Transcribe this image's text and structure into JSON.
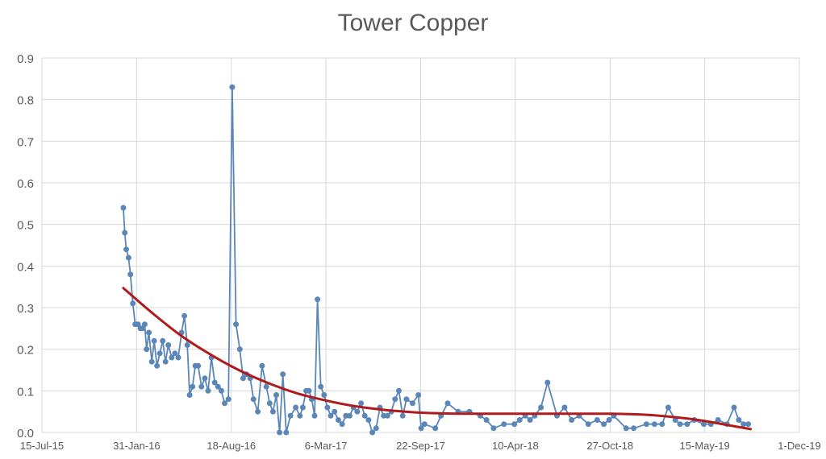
{
  "chart_data": {
    "type": "line",
    "title": "Tower Copper",
    "xlabel": "",
    "ylabel": "",
    "x_axis_type": "date",
    "xlim": [
      "2015-07-15",
      "2019-12-01"
    ],
    "ylim": [
      0,
      0.9
    ],
    "x_ticks": [
      "2015-07-15",
      "2016-01-31",
      "2016-08-18",
      "2017-03-06",
      "2017-09-22",
      "2018-04-10",
      "2018-10-27",
      "2019-05-15",
      "2019-12-01"
    ],
    "x_tick_labels": [
      "15-Jul-15",
      "31-Jan-16",
      "18-Aug-16",
      "6-Mar-17",
      "22-Sep-17",
      "10-Apr-18",
      "27-Oct-18",
      "15-May-19",
      "1-Dec-19"
    ],
    "y_ticks": [
      0,
      0.1,
      0.2,
      0.3,
      0.4,
      0.5,
      0.6,
      0.7,
      0.8,
      0.9
    ],
    "y_tick_labels": [
      "0.0",
      "0.1",
      "0.2",
      "0.3",
      "0.4",
      "0.5",
      "0.6",
      "0.7",
      "0.8",
      "0.9"
    ],
    "grid": true,
    "legend": "none",
    "colors": {
      "series": "#5B86B8",
      "trend": "#B01A1A",
      "grid": "#D9D9D9",
      "axis_text": "#595959"
    },
    "series": [
      {
        "type": "line-markers",
        "x": [
          "2016-01-03",
          "2016-01-06",
          "2016-01-09",
          "2016-01-14",
          "2016-01-18",
          "2016-01-23",
          "2016-01-28",
          "2016-02-03",
          "2016-02-08",
          "2016-02-13",
          "2016-02-17",
          "2016-02-21",
          "2016-02-26",
          "2016-03-03",
          "2016-03-08",
          "2016-03-14",
          "2016-03-20",
          "2016-03-26",
          "2016-04-01",
          "2016-04-07",
          "2016-04-14",
          "2016-04-21",
          "2016-04-28",
          "2016-05-05",
          "2016-05-11",
          "2016-05-17",
          "2016-05-22",
          "2016-05-28",
          "2016-06-03",
          "2016-06-09",
          "2016-06-16",
          "2016-06-23",
          "2016-06-30",
          "2016-07-07",
          "2016-07-14",
          "2016-07-21",
          "2016-07-28",
          "2016-08-04",
          "2016-08-12",
          "2016-08-20",
          "2016-08-28",
          "2016-09-05",
          "2016-09-12",
          "2016-09-19",
          "2016-09-27",
          "2016-10-04",
          "2016-10-13",
          "2016-10-22",
          "2016-10-31",
          "2016-11-07",
          "2016-11-14",
          "2016-11-21",
          "2016-11-28",
          "2016-12-05",
          "2016-12-12",
          "2016-12-21",
          "2017-01-01",
          "2017-01-10",
          "2017-01-16",
          "2017-01-23",
          "2017-01-29",
          "2017-02-04",
          "2017-02-10",
          "2017-02-16",
          "2017-02-23",
          "2017-03-02",
          "2017-03-09",
          "2017-03-16",
          "2017-03-24",
          "2017-04-01",
          "2017-04-09",
          "2017-04-17",
          "2017-04-25",
          "2017-05-03",
          "2017-05-11",
          "2017-05-19",
          "2017-05-27",
          "2017-06-04",
          "2017-06-12",
          "2017-06-20",
          "2017-06-28",
          "2017-07-06",
          "2017-07-14",
          "2017-07-22",
          "2017-07-30",
          "2017-08-07",
          "2017-08-15",
          "2017-08-23",
          "2017-09-05",
          "2017-09-17",
          "2017-09-23",
          "2017-09-30",
          "2017-10-23",
          "2017-11-04",
          "2017-11-18",
          "2017-12-10",
          "2018-01-03",
          "2018-01-26",
          "2018-02-08",
          "2018-02-23",
          "2018-03-17",
          "2018-04-08",
          "2018-04-19",
          "2018-05-01",
          "2018-05-11",
          "2018-05-21",
          "2018-06-03",
          "2018-06-17",
          "2018-07-07",
          "2018-07-23",
          "2018-08-07",
          "2018-08-23",
          "2018-09-11",
          "2018-09-30",
          "2018-10-14",
          "2018-10-25",
          "2018-11-04",
          "2018-11-30",
          "2018-12-16",
          "2019-01-12",
          "2019-01-29",
          "2019-02-14",
          "2019-02-27",
          "2019-03-14",
          "2019-03-24",
          "2019-04-08",
          "2019-04-23",
          "2019-05-13",
          "2019-05-28",
          "2019-06-12",
          "2019-07-01",
          "2019-07-16",
          "2019-07-26",
          "2019-08-05",
          "2019-08-15"
        ],
        "y": [
          0.54,
          0.48,
          0.44,
          0.42,
          0.38,
          0.31,
          0.26,
          0.26,
          0.25,
          0.25,
          0.26,
          0.2,
          0.24,
          0.17,
          0.22,
          0.16,
          0.19,
          0.22,
          0.17,
          0.21,
          0.18,
          0.19,
          0.18,
          0.24,
          0.28,
          0.21,
          0.09,
          0.11,
          0.16,
          0.16,
          0.11,
          0.13,
          0.1,
          0.18,
          0.12,
          0.11,
          0.1,
          0.07,
          0.08,
          0.83,
          0.26,
          0.2,
          0.13,
          0.14,
          0.13,
          0.08,
          0.05,
          0.16,
          0.11,
          0.07,
          0.05,
          0.09,
          0.0,
          0.14,
          0.0,
          0.04,
          0.06,
          0.04,
          0.06,
          0.1,
          0.1,
          0.08,
          0.04,
          0.32,
          0.11,
          0.09,
          0.06,
          0.04,
          0.05,
          0.03,
          0.02,
          0.04,
          0.04,
          0.06,
          0.05,
          0.07,
          0.04,
          0.03,
          0.0,
          0.01,
          0.06,
          0.04,
          0.04,
          0.05,
          0.08,
          0.1,
          0.04,
          0.08,
          0.07,
          0.09,
          0.01,
          0.02,
          0.01,
          0.04,
          0.07,
          0.05,
          0.05,
          0.04,
          0.03,
          0.01,
          0.02,
          0.02,
          0.03,
          0.04,
          0.03,
          0.04,
          0.06,
          0.12,
          0.04,
          0.06,
          0.03,
          0.04,
          0.02,
          0.03,
          0.02,
          0.03,
          0.04,
          0.01,
          0.01,
          0.02,
          0.02,
          0.02,
          0.06,
          0.03,
          0.02,
          0.02,
          0.03,
          0.02,
          0.02,
          0.03,
          0.02,
          0.06,
          0.03,
          0.02,
          0.02
        ]
      },
      {
        "type": "trendline",
        "x": [
          "2016-01-03",
          "2016-03-01",
          "2016-05-01",
          "2016-07-01",
          "2016-09-01",
          "2016-11-01",
          "2017-01-01",
          "2017-03-01",
          "2017-05-01",
          "2017-07-01",
          "2017-09-01",
          "2017-11-01",
          "2018-01-01",
          "2018-03-01",
          "2018-05-01",
          "2018-07-01",
          "2018-09-01",
          "2018-11-01",
          "2019-01-01",
          "2019-03-01",
          "2019-05-01",
          "2019-07-01",
          "2019-08-20"
        ],
        "y": [
          0.347,
          0.29,
          0.235,
          0.19,
          0.151,
          0.12,
          0.095,
          0.078,
          0.064,
          0.055,
          0.049,
          0.046,
          0.045,
          0.045,
          0.045,
          0.045,
          0.045,
          0.045,
          0.043,
          0.038,
          0.03,
          0.018,
          0.008
        ]
      }
    ]
  }
}
